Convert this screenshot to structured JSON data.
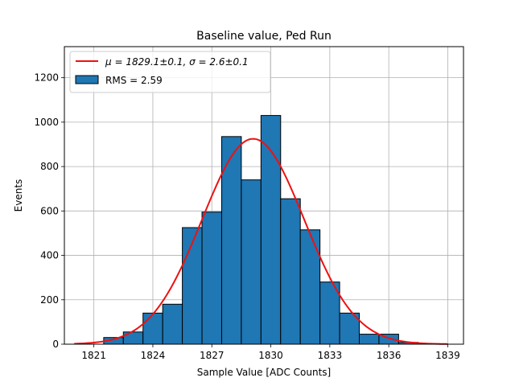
{
  "chart_data": {
    "type": "bar",
    "title": "Baseline value, Ped Run",
    "xlabel": "Sample Value [ADC Counts]",
    "ylabel": "Events",
    "xlim": [
      1819.5,
      1839.8
    ],
    "ylim": [
      0,
      1340
    ],
    "xticks": [
      1821,
      1824,
      1827,
      1830,
      1833,
      1836,
      1839
    ],
    "yticks": [
      0,
      200,
      400,
      600,
      800,
      1000,
      1200
    ],
    "grid": true,
    "legend_position": "top-left",
    "bins": {
      "start": 1821.5,
      "width": 1.0,
      "values": [
        30,
        55,
        140,
        180,
        525,
        595,
        935,
        740,
        1030,
        655,
        515,
        280,
        140,
        45,
        45,
        8
      ]
    },
    "fit": {
      "type": "gaussian",
      "mu": 1829.1,
      "sigma": 2.6,
      "amplitude": 925,
      "x_start": 1820.0,
      "x_end": 1839.0,
      "label": "μ = 1829.1±0.1, σ = 2.6±0.1"
    },
    "legend": {
      "fit_label": "μ = 1829.1±0.1, σ = 2.6±0.1",
      "hist_label": "RMS = 2.59"
    },
    "colors": {
      "bar_fill": "#1f77b4",
      "bar_edge": "#000000",
      "fit_line": "#ee1111",
      "grid": "#b0b0b0"
    }
  }
}
